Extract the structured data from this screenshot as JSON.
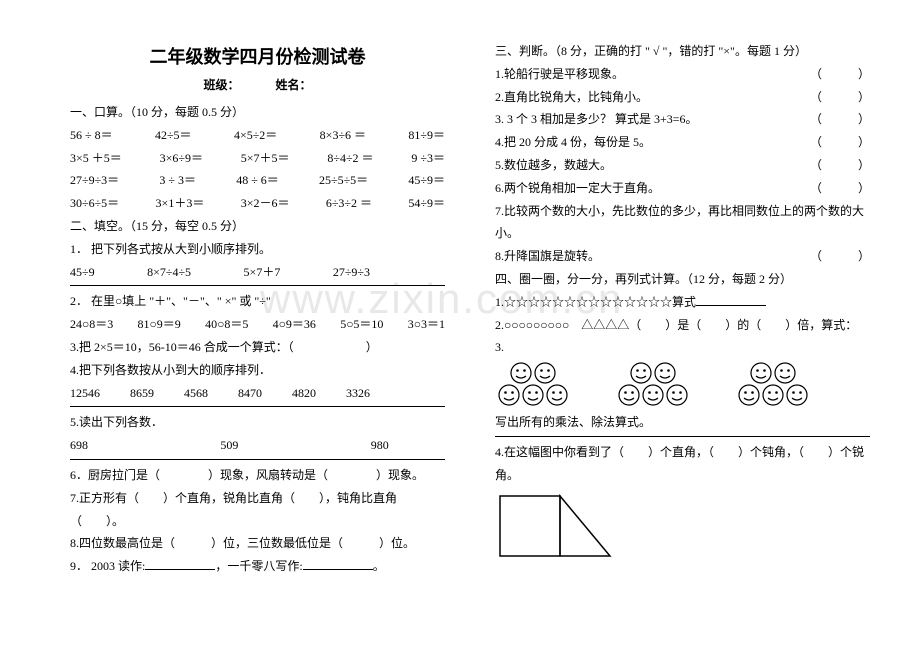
{
  "title": "二年级数学四月份检测试卷",
  "subtitle_class": "班级：",
  "subtitle_name": "姓名：",
  "left": {
    "s1_head": "一、口算。（10 分，每题 0.5 分）",
    "s1_r1": [
      "56 ÷ 8＝",
      "42÷5＝",
      "4×5÷2＝",
      "8×3÷6 ＝",
      "81÷9＝"
    ],
    "s1_r2": [
      "3×5 ＋5＝",
      "3×6÷9＝",
      "5×7＋5＝",
      "8÷4÷2 ＝",
      "9 ÷3＝"
    ],
    "s1_r3": [
      "27÷9÷3＝",
      "3 ÷ 3＝",
      "48 ÷ 6＝",
      "25÷5÷5＝",
      "45÷9＝"
    ],
    "s1_r4": [
      "30÷6÷5＝",
      "3×1＋3＝",
      "3×2－6＝",
      "6÷3÷2 ＝",
      "54÷9＝"
    ],
    "s2_head": "二、填空。（15 分，每空 0.5 分）",
    "s2_q1": "1． 把下列各式按从大到小顺序排列。",
    "s2_q1_items": [
      "45÷9",
      "8×7÷4÷5",
      "5×7＋7",
      "27÷9÷3"
    ],
    "s2_q2": "2． 在里○填上 \"＋\"、\"－\"、\" ×\" 或 \"÷\"",
    "s2_q2_items": [
      "24○8＝3",
      "81○9＝9",
      "40○8＝5",
      "4○9＝36",
      "5○5＝10",
      "3○3＝1"
    ],
    "s2_q3": "3.把 2×5＝10，56-10＝46 合成一个算式：（　　　　　　）",
    "s2_q4": "4.把下列各数按从小到大的顺序排列．",
    "s2_q4_items": [
      "12546",
      "8659",
      "4568",
      "8470",
      "4820",
      "3326"
    ],
    "s2_q5": "5.读出下列各数．",
    "s2_q5_items": [
      "698",
      "509",
      "980"
    ],
    "s2_q6": "6．厨房拉门是（　　　　）现象，风扇转动是（　　　　）现象。",
    "s2_q7": "7.正方形有（　　）个直角，锐角比直角（　　），钝角比直角（　　）。",
    "s2_q8": "8.四位数最高位是（　　　）位，三位数最低位是（　　　）位。",
    "s2_q9a": "9．  2003 读作:",
    "s2_q9b": "，一千零八写作:"
  },
  "right": {
    "s3_head": "三、判断。（8 分，正确的打 \" √ \"，错的打 \"×\"。每题 1 分）",
    "s3_q1": "1.轮船行驶是平移现象。",
    "s3_q2": "2.直角比锐角大，比钝角小。",
    "s3_q3": "3. 3 个 3 相加是多少？ 算式是 3+3=6。",
    "s3_q4": "4.把 20 分成 4 份，每份是 5。",
    "s3_q5": "5.数位越多，数越大。",
    "s3_q6": "6.两个锐角相加一定大于直角。",
    "s3_q7": "7.比较两个数的大小，先比数位的多少，再比相同数位上的两个数的大小。",
    "s3_q8": "8.升降国旗是旋转。",
    "paren": "（　　　）",
    "s4_head": "四、圈一圈，分一分，再列式计算。（12 分，每题 2 分）",
    "s4_q1": "1.☆☆☆☆☆☆☆☆☆☆☆☆☆☆算式",
    "s4_q2a": "2.○○○○○○○○○",
    "s4_q2b": "△△△△（　　）是（　　）的（　　）倍，算式：",
    "s4_q3": "3.",
    "s4_post": "写出所有的乘法、除法算式。",
    "s4_q4": "4.在这幅图中你看到了（　　）个直角，（　　）个钝角，（　　）个锐角。"
  },
  "colors": {
    "text": "#000000",
    "bg": "#ffffff",
    "watermark": "#e8e8e8"
  }
}
